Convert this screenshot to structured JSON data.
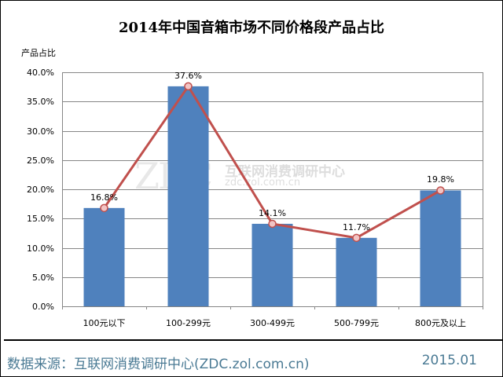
{
  "title": "2014年中国音箱市场不同价格段产品占比",
  "y_axis_label": "产品占比",
  "y_ticks": [
    "40.0%",
    "35.0%",
    "30.0%",
    "25.0%",
    "20.0%",
    "15.0%",
    "10.0%",
    "5.0%",
    "0.0%"
  ],
  "x_ticks": [
    "100元以下",
    "100-299元",
    "300-499元",
    "500-799元",
    "800元及以上"
  ],
  "data_labels": [
    "16.8%",
    "37.6%",
    "14.1%",
    "11.7%",
    "19.8%"
  ],
  "watermark": {
    "logo": "ZDC",
    "name": "互联网消费调研中心",
    "url": "zdc.zol.com.cn"
  },
  "footer": {
    "source": "数据来源：互联网消费调研中心(ZDC.zol.com.cn)",
    "date": "2015.01"
  },
  "colors": {
    "bar": "#4f81bd",
    "line": "#c0504d",
    "marker_fill": "#f2c4c4",
    "footer_text": "#4a7a94"
  },
  "chart_data": {
    "type": "bar",
    "title": "2014年中国音箱市场不同价格段产品占比",
    "xlabel": "",
    "ylabel": "产品占比",
    "categories": [
      "100元以下",
      "100-299元",
      "300-499元",
      "500-799元",
      "800元及以上"
    ],
    "series": [
      {
        "name": "产品占比 (bar)",
        "type": "bar",
        "values": [
          16.8,
          37.6,
          14.1,
          11.7,
          19.8
        ]
      },
      {
        "name": "产品占比 (line)",
        "type": "line",
        "values": [
          16.8,
          37.6,
          14.1,
          11.7,
          19.8
        ]
      }
    ],
    "ylim": [
      0,
      40
    ],
    "yticks_step": 5,
    "unit": "%",
    "grid": true,
    "legend": "none"
  }
}
